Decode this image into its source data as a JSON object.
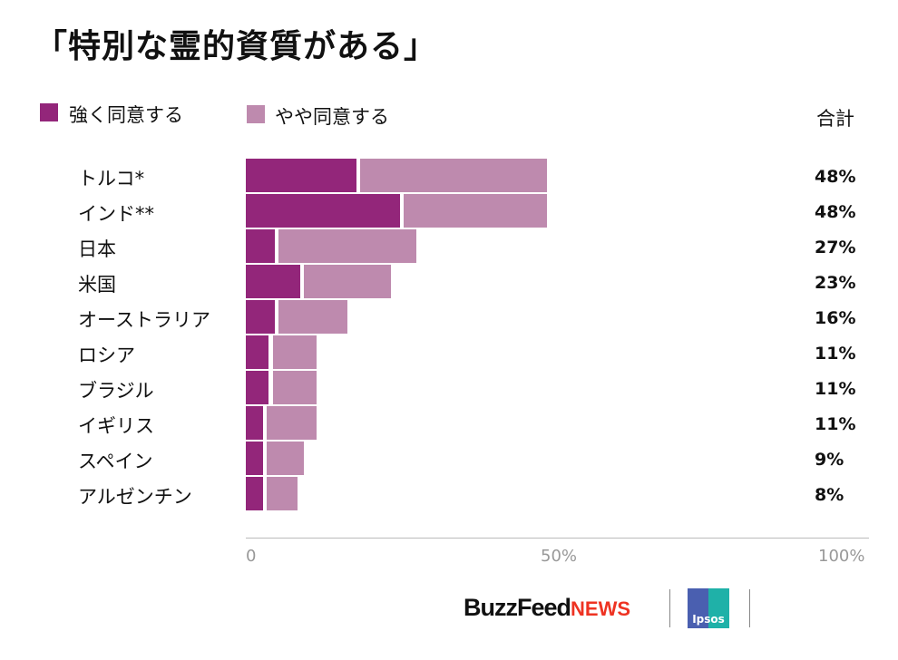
{
  "chart_data": {
    "type": "bar",
    "stacked": true,
    "orientation": "horizontal",
    "title": "「特別な霊的資質がある」",
    "categories": [
      "トルコ*",
      "インド**",
      "日本",
      "米国",
      "オーストラリア",
      "ロシア",
      "ブラジル",
      "イギリス",
      "スペイン",
      "アルゼンチン"
    ],
    "series": [
      {
        "name": "強く同意する",
        "color": "#93267a",
        "values": [
          18,
          25,
          5,
          9,
          5,
          4,
          4,
          3,
          3,
          3
        ]
      },
      {
        "name": "やや同意する",
        "color": "#be8aae",
        "values": [
          30,
          23,
          22,
          14,
          11,
          7,
          7,
          8,
          6,
          5
        ]
      }
    ],
    "totals_header": "合計",
    "totals": [
      "48%",
      "48%",
      "27%",
      "23%",
      "16%",
      "11%",
      "11%",
      "11%",
      "9%",
      "8%"
    ],
    "xlim": [
      0,
      100
    ],
    "xticks": [
      "0",
      "50%",
      "100%"
    ],
    "grid": false,
    "legend_placement": "top-left"
  },
  "footer": {
    "brand_a": "BuzzFeed",
    "brand_a_suffix": "NEWS",
    "brand_b": "Ipsos"
  }
}
